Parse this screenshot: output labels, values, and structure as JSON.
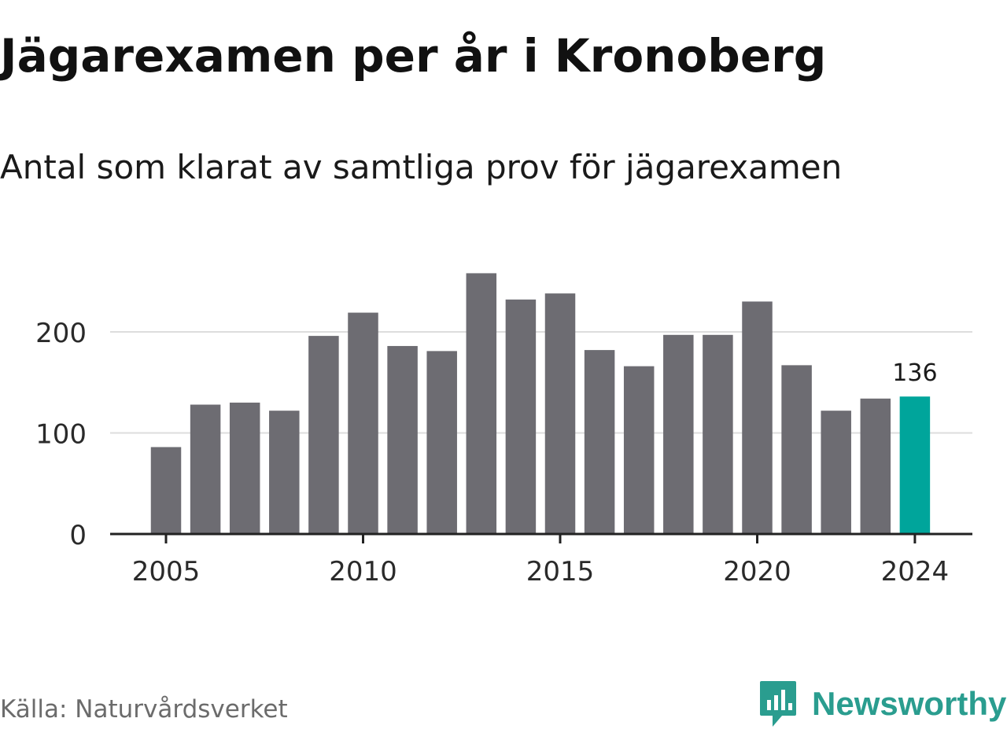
{
  "title": "Jägarexamen per år i Kronoberg",
  "subtitle": "Antal som klarat av samtliga prov för jägarexamen",
  "source": "Källa: Naturvårdsverket",
  "brand": {
    "name": "Newsworthy",
    "logo_icon": "chart-speech-bubble-icon",
    "color": "#2a9d8f"
  },
  "colors": {
    "bar": "#6d6c72",
    "highlight": "#00a59b",
    "grid": "#dddddd",
    "axis": "#222222"
  },
  "chart_data": {
    "type": "bar",
    "title": "Jägarexamen per år i Kronoberg",
    "subtitle": "Antal som klarat av samtliga prov för jägarexamen",
    "categories": [
      2005,
      2006,
      2007,
      2008,
      2009,
      2010,
      2011,
      2012,
      2013,
      2014,
      2015,
      2016,
      2017,
      2018,
      2019,
      2020,
      2021,
      2022,
      2023,
      2024
    ],
    "values": [
      86,
      128,
      130,
      122,
      196,
      219,
      186,
      181,
      258,
      232,
      238,
      182,
      166,
      197,
      197,
      230,
      167,
      122,
      134,
      136
    ],
    "highlight": {
      "category": 2024,
      "value": 136,
      "label": "136"
    },
    "x_ticks": [
      2005,
      2010,
      2015,
      2020,
      2024
    ],
    "y_ticks": [
      0,
      100,
      200
    ],
    "ylim": [
      0,
      270
    ],
    "grid": true,
    "legend": "none"
  }
}
